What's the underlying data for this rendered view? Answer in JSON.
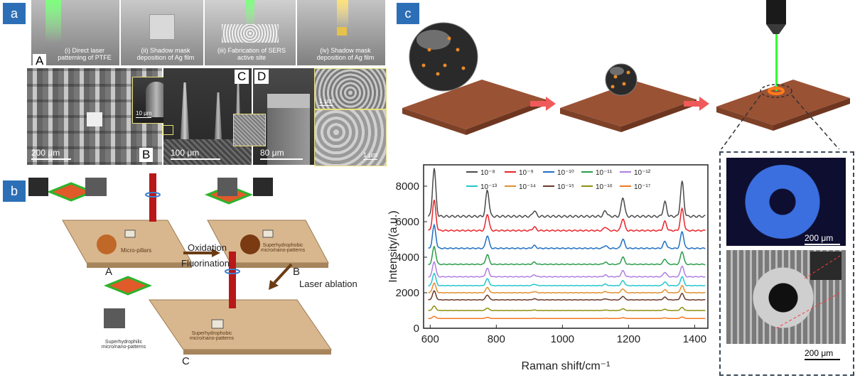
{
  "panels": {
    "a": {
      "tag": "a",
      "captions": [
        "(i) Direct laser patterning of PTFE",
        "(ii) Shadow mask deposition of Ag film",
        "(iii) Fabrication of SERS active site",
        "(iv) Shadow mask deposition of Ag film"
      ],
      "sub_labels": {
        "A": "A",
        "B": "B",
        "C": "C",
        "D": "D"
      },
      "scales": {
        "s200": "200 μm",
        "s10": "10 μm",
        "s100": "100 μm",
        "s80": "80 μm",
        "s1a": "1 μm",
        "s1b": "1 μm"
      }
    },
    "b": {
      "tag": "b",
      "labels": {
        "A": "A",
        "B": "B",
        "C": "C"
      },
      "oxidation": "Oxidation",
      "fluorination": "Fluorination",
      "laser_ablation": "Laser ablation",
      "micro_pillars": "Micro-pillars",
      "superhydrophobic_top": "Superhydrophobic micro/nano-patterns",
      "superhydrophobic_bottom": "Superhydrophobic micro/nano-patterns",
      "superhydrophilic": "Superhydrophilic micro/nano-patterns"
    },
    "c": {
      "tag": "c",
      "scale_top": "200 μm",
      "scale_bottom": "200 μm"
    }
  },
  "chart_data": {
    "type": "line",
    "xlabel": "Raman shift/cm⁻¹",
    "ylabel": "Intensity/(a.u.)",
    "xlim": [
      580,
      1440
    ],
    "ylim": [
      0,
      9200
    ],
    "xticks": [
      600,
      800,
      1000,
      1200,
      1400
    ],
    "yticks": [
      0,
      2000,
      4000,
      6000,
      8000
    ],
    "xtick_labels": [
      "600",
      "800",
      "1000",
      "1200",
      "1400"
    ],
    "ytick_labels": [
      "0",
      "2000",
      "4000",
      "6000",
      "8000"
    ],
    "peaks": [
      {
        "x": 612,
        "rel": 1.0
      },
      {
        "x": 773,
        "rel": 0.55
      },
      {
        "x": 1183,
        "rel": 0.4
      },
      {
        "x": 1310,
        "rel": 0.3
      },
      {
        "x": 1362,
        "rel": 0.72
      },
      {
        "x": 915,
        "rel": 0.12
      },
      {
        "x": 1130,
        "rel": 0.12
      }
    ],
    "series": [
      {
        "name": "10⁻⁸",
        "color": "#4a4a4a",
        "baseline": 6300,
        "peak": 2700
      },
      {
        "name": "10⁻⁹",
        "color": "#e8242a",
        "baseline": 5500,
        "peak": 1700
      },
      {
        "name": "10⁻¹⁰",
        "color": "#1f6fc5",
        "baseline": 4500,
        "peak": 1300
      },
      {
        "name": "10⁻¹¹",
        "color": "#2a9d4a",
        "baseline": 3600,
        "peak": 1000
      },
      {
        "name": "10⁻¹²",
        "color": "#b07ee0",
        "baseline": 2900,
        "peak": 850
      },
      {
        "name": "10⁻¹³",
        "color": "#26c6cf",
        "baseline": 2400,
        "peak": 700
      },
      {
        "name": "10⁻¹⁴",
        "color": "#e09030",
        "baseline": 2000,
        "peak": 550
      },
      {
        "name": "10⁻¹⁵",
        "color": "#6b3a2a",
        "baseline": 1600,
        "peak": 500
      },
      {
        "name": "10⁻¹⁶",
        "color": "#8f8f10",
        "baseline": 1000,
        "peak": 250
      },
      {
        "name": "10⁻¹⁷",
        "color": "#f07820",
        "baseline": 550,
        "peak": 120
      }
    ]
  },
  "colors": {
    "tag_blue": "#2c6fb7",
    "substrate": "#8a4a30",
    "arrow": "#f05a5a",
    "laser": "#33ff33"
  }
}
